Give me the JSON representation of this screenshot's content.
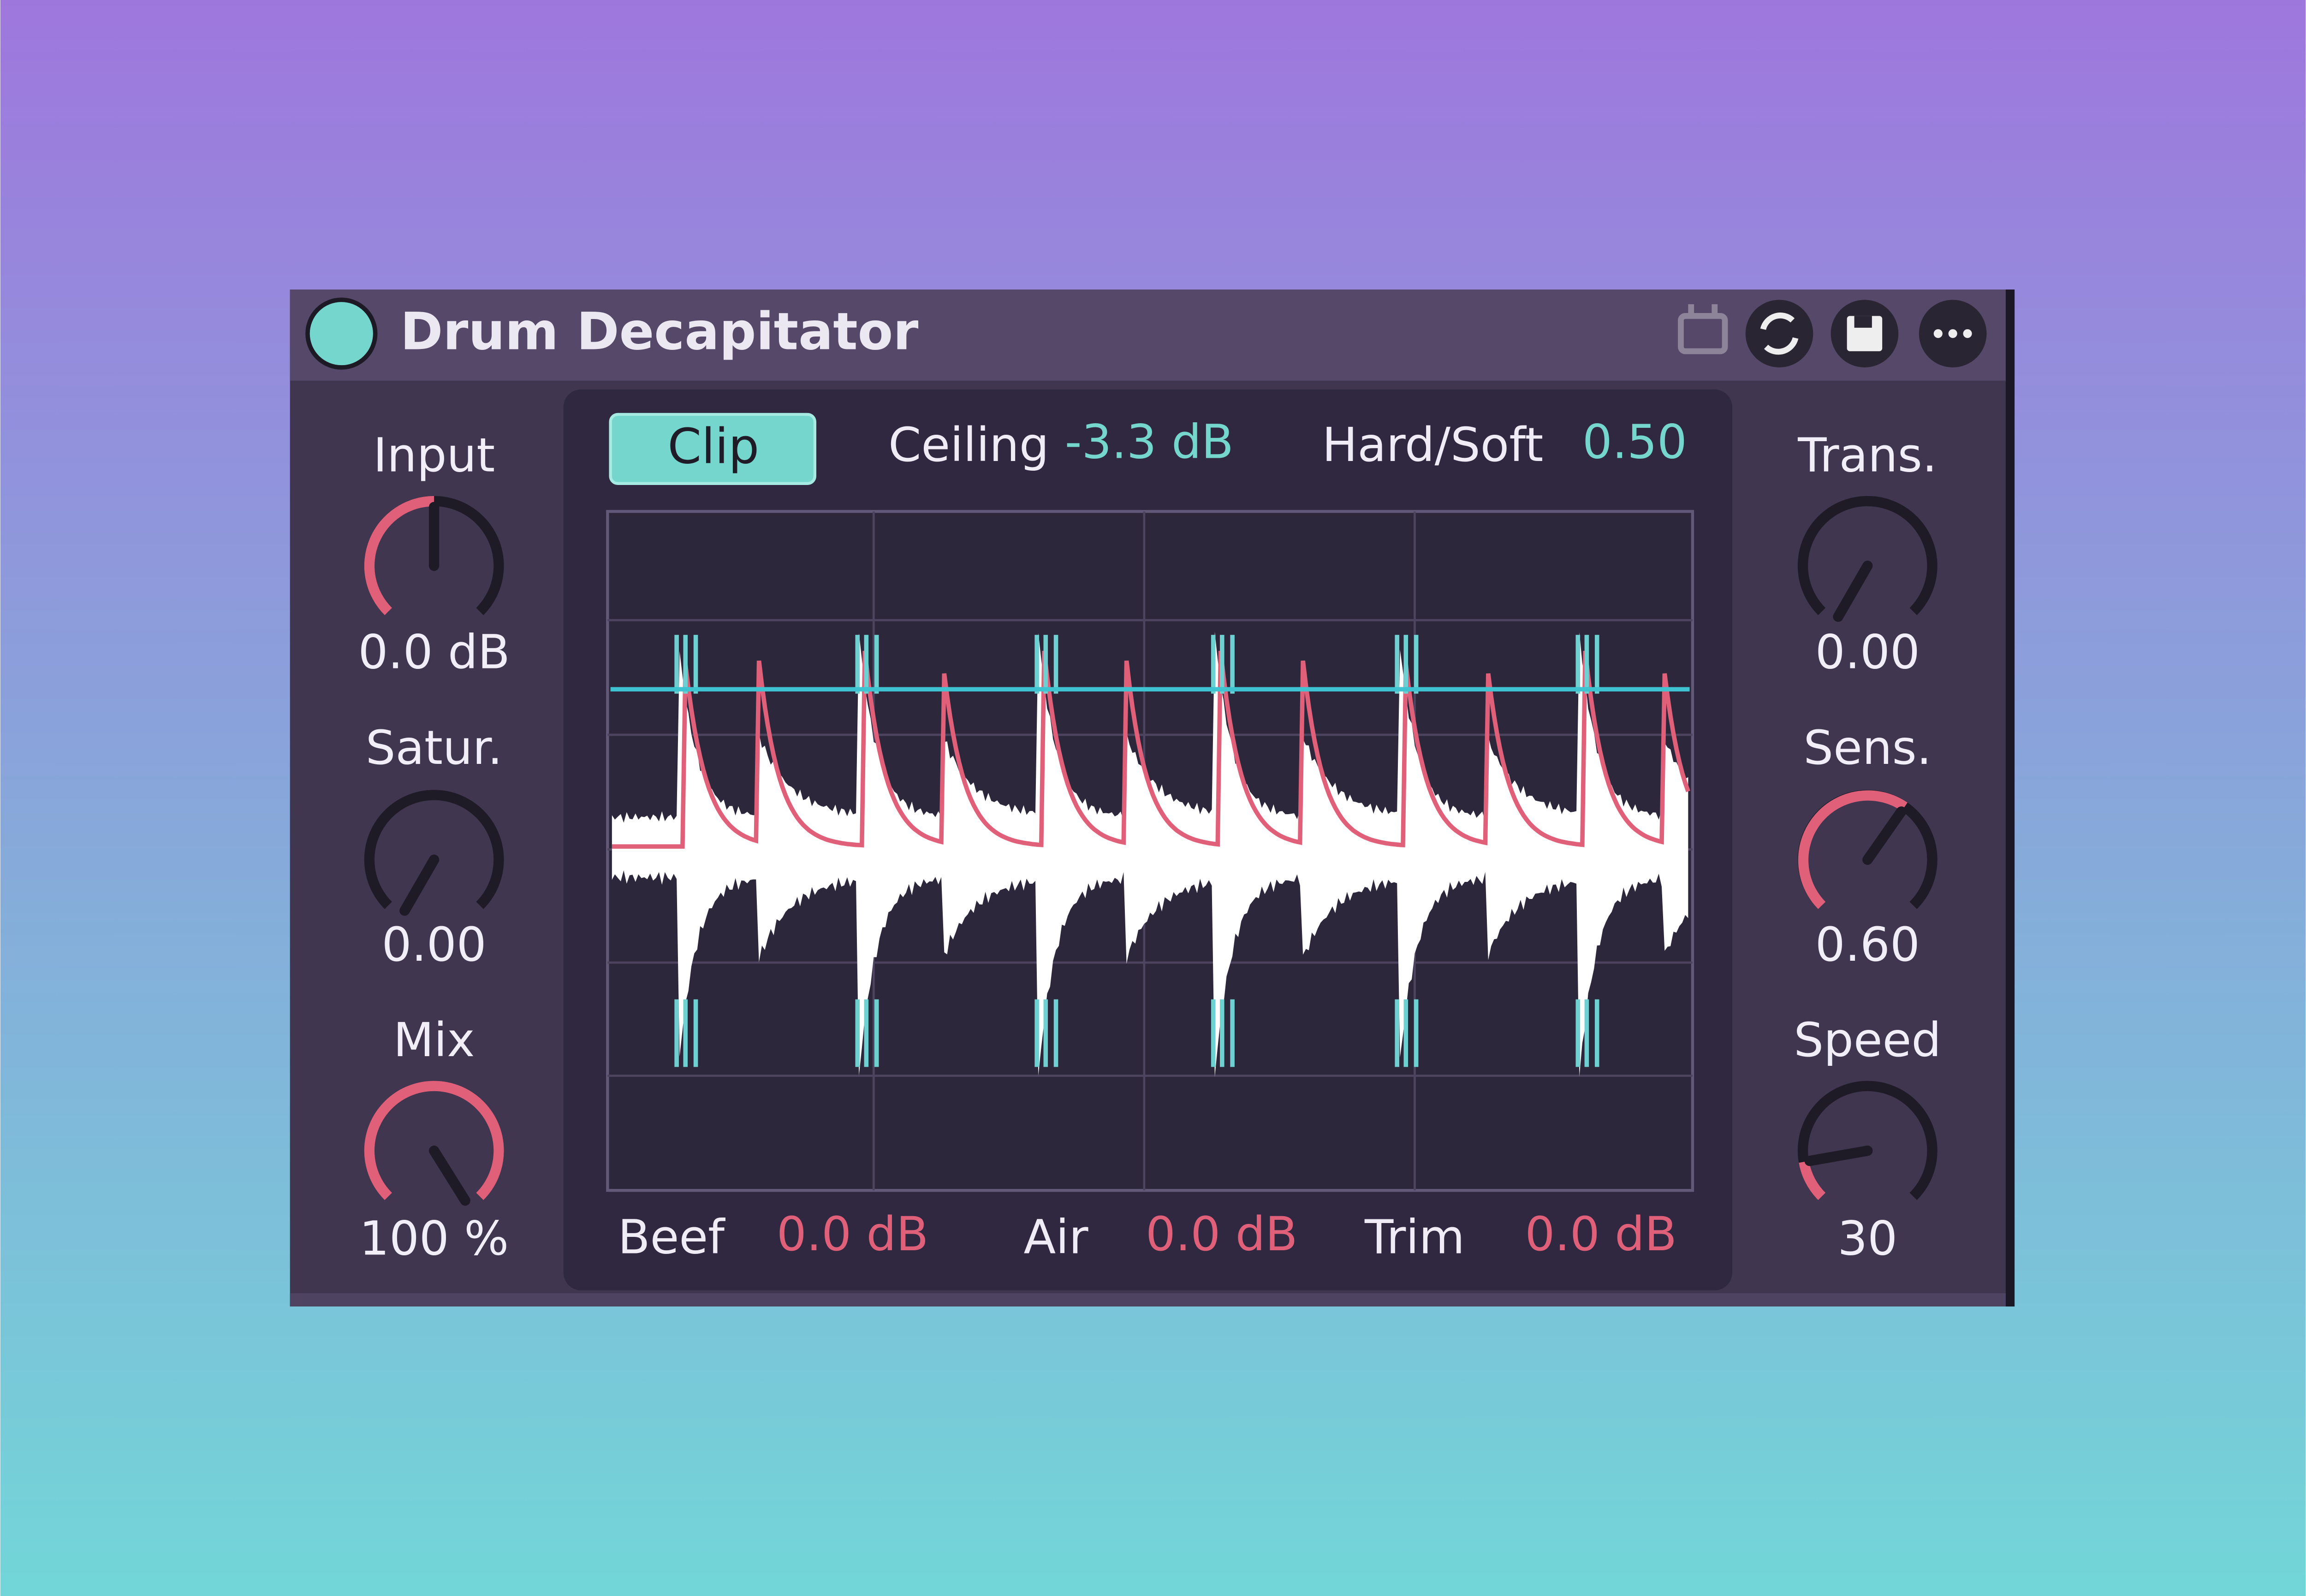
{
  "header": {
    "title": "Drum Decapitator"
  },
  "left_controls": [
    {
      "label": "Input",
      "value": "0.0 dB"
    },
    {
      "label": "Satur.",
      "value": "0.00"
    },
    {
      "label": "Mix",
      "value": "100 %"
    }
  ],
  "right_controls": [
    {
      "label": "Trans.",
      "value": "0.00"
    },
    {
      "label": "Sens.",
      "value": "0.60"
    },
    {
      "label": "Speed",
      "value": "30"
    }
  ],
  "display": {
    "mode_button": "Clip",
    "ceiling": {
      "label": "Ceiling",
      "value": "-3.3 dB"
    },
    "hard_soft": {
      "label": "Hard/Soft",
      "value": "0.50"
    }
  },
  "bottom": [
    {
      "label": "Beef",
      "value": "0.0 dB"
    },
    {
      "label": "Air",
      "value": "0.0 dB"
    },
    {
      "label": "Trim",
      "value": "0.0 dB"
    }
  ]
}
